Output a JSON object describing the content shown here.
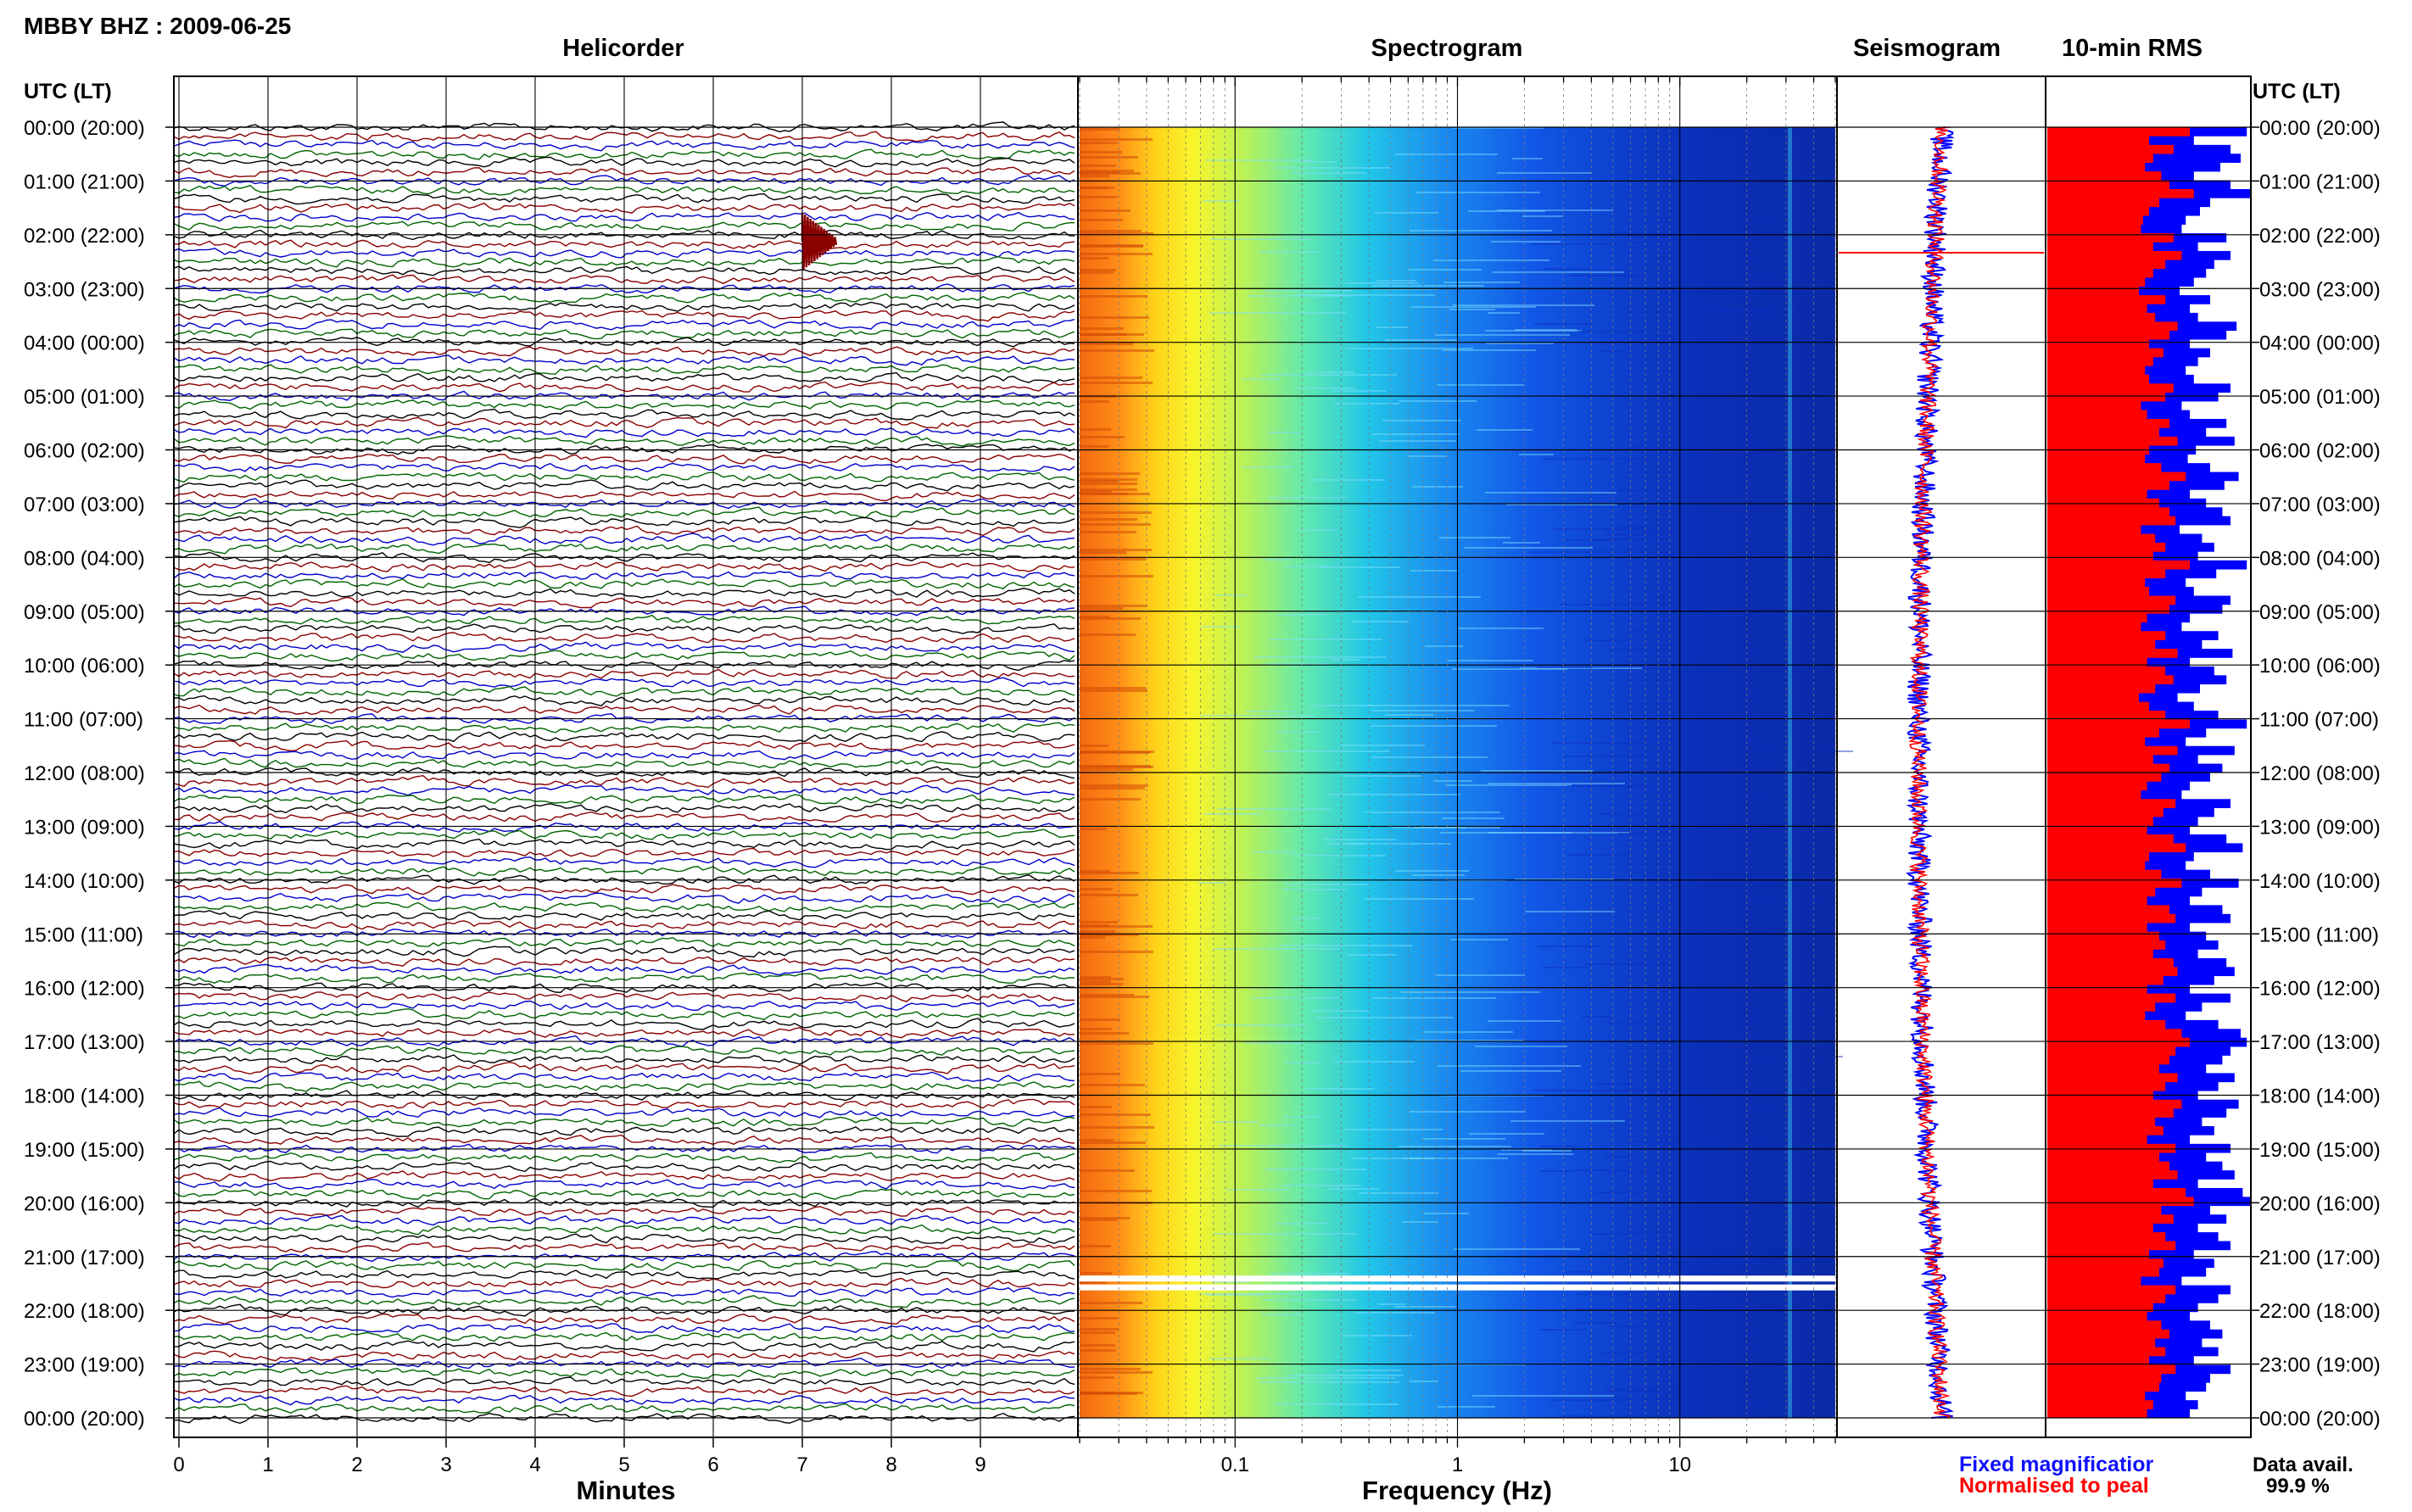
{
  "header": {
    "station_title": "MBBY BHZ : 2009-06-25",
    "panel_titles": {
      "helicorder": "Helicorder",
      "spectrogram": "Spectrogram",
      "seismogram": "Seismogram",
      "rms": "10-min RMS"
    },
    "axis_header_left": "UTC (LT)",
    "axis_header_right": "UTC (LT)"
  },
  "footer": {
    "xlabel_minutes": "Minutes",
    "xlabel_frequency": "Frequency (Hz)",
    "legend_fixed": "Fixed magnificatior",
    "legend_normalised": "Normalised to peal",
    "data_avail_label": "Data avail.",
    "data_avail_value": "99.9 %"
  },
  "colors": {
    "legend_fixed": "#1010ff",
    "legend_normalised": "#ff0000",
    "helicorder_traces": [
      "#000000",
      "#8b0000",
      "#0000cc",
      "#006400"
    ],
    "rms_fixed": "#0000ff",
    "rms_normalised": "#ff0000"
  },
  "time_labels": [
    "00:00 (20:00)",
    "01:00 (21:00)",
    "02:00 (22:00)",
    "03:00 (23:00)",
    "04:00 (00:00)",
    "05:00 (01:00)",
    "06:00 (02:00)",
    "07:00 (03:00)",
    "08:00 (04:00)",
    "09:00 (05:00)",
    "10:00 (06:00)",
    "11:00 (07:00)",
    "12:00 (08:00)",
    "13:00 (09:00)",
    "14:00 (10:00)",
    "15:00 (11:00)",
    "16:00 (12:00)",
    "17:00 (13:00)",
    "18:00 (14:00)",
    "19:00 (15:00)",
    "20:00 (16:00)",
    "21:00 (17:00)",
    "22:00 (18:00)",
    "23:00 (19:00)",
    "00:00 (20:00)"
  ],
  "chart_data": [
    {
      "type": "line",
      "panel": "helicorder",
      "xlabel": "Minutes",
      "x_ticks": [
        0,
        1,
        2,
        3,
        4,
        5,
        6,
        7,
        8,
        9
      ],
      "xlim": [
        0,
        10
      ],
      "traces_per_hour": 6,
      "event": {
        "hour": 2,
        "minute": 7
      }
    },
    {
      "type": "heatmap",
      "panel": "spectrogram",
      "xlabel": "Frequency (Hz)",
      "x_scale": "log",
      "x_ticks": [
        0.1,
        1,
        10
      ],
      "x_tick_labels": [
        "0.1",
        "1",
        "10"
      ],
      "xlim": [
        0.02,
        50
      ],
      "gaps_utc": [
        "21:25",
        "21:35"
      ]
    },
    {
      "type": "line",
      "panel": "seismogram",
      "series": [
        {
          "name": "Fixed magnificatior",
          "color": "#0000ff"
        },
        {
          "name": "Normalised to peal",
          "color": "#ff0000"
        }
      ],
      "spike_utc": "02:20"
    },
    {
      "type": "bar",
      "panel": "rms",
      "orientation": "horizontal",
      "series": [
        {
          "name": "Fixed magnificatior",
          "color": "#0000ff",
          "values": [
            0.98,
            0.72,
            0.9,
            0.95,
            0.85,
            0.72,
            0.9,
            1.0,
            0.8,
            0.75,
            0.68,
            0.66,
            0.88,
            0.74,
            0.9,
            0.82,
            0.78,
            0.72,
            0.65,
            0.8,
            0.7,
            0.74,
            0.93,
            0.88,
            0.7,
            0.8,
            0.74,
            0.68,
            0.72,
            0.9,
            0.84,
            0.66,
            0.7,
            0.88,
            0.78,
            0.92,
            0.73,
            0.69,
            0.8,
            0.94,
            0.87,
            0.7,
            0.78,
            0.86,
            0.9,
            0.65,
            0.76,
            0.82,
            0.74,
            0.98,
            0.83,
            0.68,
            0.72,
            0.9,
            0.86,
            0.7,
            0.66,
            0.84,
            0.76,
            0.91,
            0.7,
            0.82,
            0.88,
            0.75,
            0.64,
            0.72,
            0.84,
            0.98,
            0.78,
            0.68,
            0.92,
            0.74,
            0.86,
            0.8,
            0.7,
            0.66,
            0.9,
            0.82,
            0.74,
            0.7,
            0.88,
            0.96,
            0.72,
            0.68,
            0.8,
            0.94,
            0.76,
            0.7,
            0.86,
            0.9,
            0.7,
            0.78,
            0.84,
            0.74,
            0.88,
            0.92,
            0.82,
            0.7,
            0.9,
            0.76,
            0.68,
            0.84,
            0.95,
            0.98,
            0.9,
            0.86,
            0.78,
            0.92,
            0.84,
            0.74,
            0.94,
            0.88,
            0.76,
            0.82,
            0.7,
            0.9,
            0.78,
            0.86,
            0.92,
            0.74,
            0.96,
            1.0,
            0.8,
            0.88,
            0.74,
            0.84,
            0.9,
            0.72,
            0.82,
            0.78,
            0.66,
            0.9,
            0.84,
            0.74,
            0.7,
            0.8,
            0.86,
            0.76,
            0.84,
            0.72,
            0.9,
            0.8,
            0.78,
            0.68,
            0.74,
            0.7
          ]
        },
        {
          "name": "Normalised to peal",
          "color": "#ff0000",
          "values": [
            0.7,
            0.5,
            0.62,
            0.52,
            0.48,
            0.56,
            0.6,
            0.72,
            0.55,
            0.5,
            0.47,
            0.46,
            0.62,
            0.52,
            0.66,
            0.58,
            0.52,
            0.48,
            0.45,
            0.58,
            0.49,
            0.53,
            0.64,
            0.6,
            0.5,
            0.57,
            0.52,
            0.48,
            0.5,
            0.62,
            0.58,
            0.46,
            0.49,
            0.6,
            0.55,
            0.64,
            0.5,
            0.48,
            0.56,
            0.68,
            0.6,
            0.49,
            0.55,
            0.6,
            0.63,
            0.46,
            0.53,
            0.58,
            0.52,
            0.7,
            0.58,
            0.48,
            0.5,
            0.63,
            0.6,
            0.49,
            0.46,
            0.58,
            0.53,
            0.64,
            0.49,
            0.58,
            0.62,
            0.53,
            0.45,
            0.5,
            0.58,
            0.7,
            0.55,
            0.48,
            0.64,
            0.52,
            0.6,
            0.56,
            0.49,
            0.46,
            0.63,
            0.57,
            0.52,
            0.49,
            0.62,
            0.68,
            0.5,
            0.48,
            0.56,
            0.66,
            0.53,
            0.49,
            0.6,
            0.63,
            0.49,
            0.55,
            0.58,
            0.52,
            0.62,
            0.64,
            0.57,
            0.49,
            0.63,
            0.53,
            0.48,
            0.58,
            0.66,
            0.7,
            0.63,
            0.6,
            0.55,
            0.64,
            0.58,
            0.52,
            0.66,
            0.62,
            0.53,
            0.57,
            0.49,
            0.63,
            0.55,
            0.6,
            0.64,
            0.52,
            0.68,
            0.72,
            0.56,
            0.62,
            0.52,
            0.58,
            0.63,
            0.5,
            0.57,
            0.55,
            0.46,
            0.63,
            0.58,
            0.52,
            0.49,
            0.56,
            0.6,
            0.53,
            0.58,
            0.5,
            0.63,
            0.56,
            0.55,
            0.48,
            0.52,
            0.49
          ]
        }
      ]
    }
  ]
}
